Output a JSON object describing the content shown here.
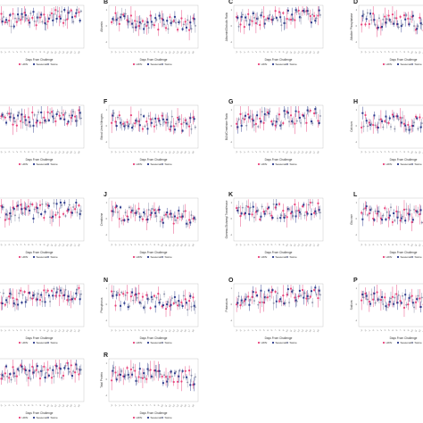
{
  "figure": {
    "x_axis_label": "Days From Challenge",
    "legend": [
      "HPAI",
      "Seasonal",
      "Swine"
    ],
    "series_colors": {
      "HPAI": "#e8417a",
      "Seasonal": "#2b3a8c",
      "Swine": "#8a8fa8"
    }
  },
  "chart_data": [
    {
      "panel": "A",
      "type": "scatter",
      "ylabel": "",
      "points": 22
    },
    {
      "panel": "B",
      "type": "scatter",
      "ylabel": "Albumin",
      "points": 22
    },
    {
      "panel": "C",
      "type": "scatter",
      "ylabel": "Albumin/Globulin Ratio",
      "points": 22
    },
    {
      "panel": "D",
      "type": "scatter",
      "ylabel": "Alkaline Phosphatase",
      "points": 22
    },
    {
      "panel": "E",
      "type": "scatter",
      "ylabel": "",
      "points": 22
    },
    {
      "panel": "F",
      "type": "scatter",
      "ylabel": "Blood Urea Nitrogen",
      "points": 22
    },
    {
      "panel": "G",
      "type": "scatter",
      "ylabel": "BUN/Creatinine Ratio",
      "points": 22
    },
    {
      "panel": "H",
      "type": "scatter",
      "ylabel": "Calcium",
      "points": 22
    },
    {
      "panel": "I",
      "type": "scatter",
      "ylabel": "",
      "points": 22
    },
    {
      "panel": "J",
      "type": "scatter",
      "ylabel": "Creatinine",
      "points": 22
    },
    {
      "panel": "K",
      "type": "scatter",
      "ylabel": "Gamma-Glutamyl Transferase",
      "points": 22
    },
    {
      "panel": "L",
      "type": "scatter",
      "ylabel": "Glucose",
      "points": 22
    },
    {
      "panel": "M",
      "type": "scatter",
      "ylabel": "",
      "points": 22
    },
    {
      "panel": "N",
      "type": "scatter",
      "ylabel": "Phosphorus",
      "points": 22
    },
    {
      "panel": "O",
      "type": "scatter",
      "ylabel": "Potassium",
      "points": 22
    },
    {
      "panel": "P",
      "type": "scatter",
      "ylabel": "Sodium",
      "points": 22
    },
    {
      "panel": "Q",
      "type": "scatter",
      "ylabel": "",
      "points": 22
    },
    {
      "panel": "R",
      "type": "scatter",
      "ylabel": "Total Protein",
      "points": 22
    }
  ]
}
